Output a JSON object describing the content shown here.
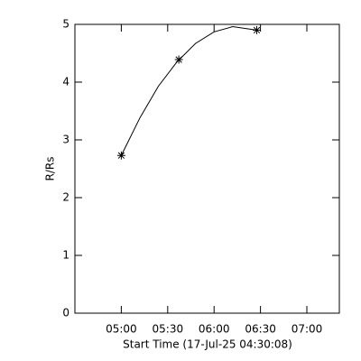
{
  "chart_data": {
    "type": "line",
    "x_label": "Start Time (17-Jul-25 04:30:08)",
    "y_label": "R/Rs",
    "xlim": [
      4.5,
      7.35
    ],
    "ylim": [
      0,
      5
    ],
    "xticks": [
      {
        "value": 5.0,
        "label": "05:00"
      },
      {
        "value": 5.5,
        "label": "05:30"
      },
      {
        "value": 6.0,
        "label": "06:00"
      },
      {
        "value": 6.5,
        "label": "06:30"
      },
      {
        "value": 7.0,
        "label": "07:00"
      }
    ],
    "yticks": [
      0,
      1,
      2,
      3,
      4,
      5
    ],
    "color": "#000000",
    "points": {
      "x": [
        5.0,
        5.62,
        6.46
      ],
      "values": [
        2.73,
        4.39,
        4.9
      ]
    },
    "fit": {
      "x": [
        5.0,
        5.2,
        5.4,
        5.6,
        5.8,
        6.0,
        6.2,
        6.46
      ],
      "values": [
        2.73,
        3.38,
        3.93,
        4.35,
        4.67,
        4.87,
        4.96,
        4.9
      ]
    }
  }
}
